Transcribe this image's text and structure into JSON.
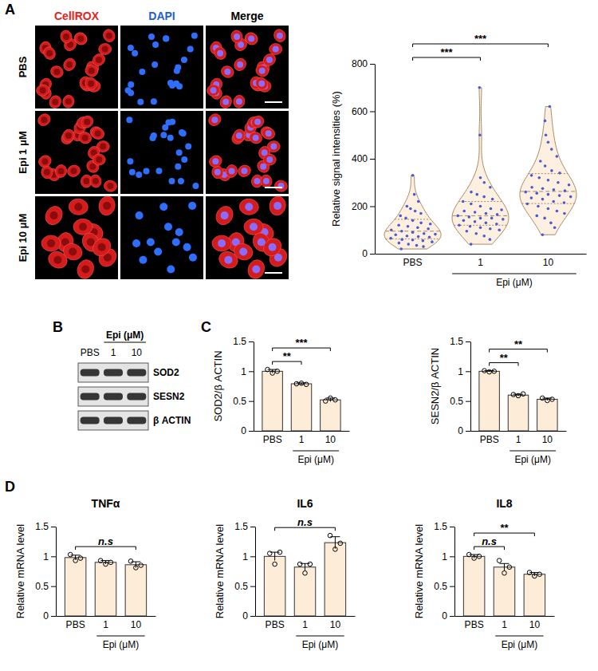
{
  "panel_letters": [
    "A",
    "B",
    "C",
    "D"
  ],
  "images": {
    "columns": [
      "CellROX",
      "DAPI",
      "Merge"
    ],
    "rows": [
      "PBS",
      "Epi 1 μM",
      "Epi 10 μM"
    ]
  },
  "blot": {
    "header": "Epi (μM)",
    "lanes": [
      "PBS",
      "1",
      "10"
    ],
    "bands": [
      "SOD2",
      "SESN2",
      "β ACTIN"
    ]
  },
  "chart_data": [
    {
      "type": "violin",
      "ylabel": "Relative signal intensities (%)",
      "xlabel": "Epi (μM)",
      "categories": [
        "PBS",
        "1",
        "10"
      ],
      "color": "#fdf0e0",
      "ylim": [
        0,
        800
      ],
      "yticks": [
        0,
        200,
        400,
        600,
        800
      ],
      "points": [
        [
          20,
          30,
          35,
          40,
          45,
          50,
          55,
          58,
          60,
          65,
          70,
          72,
          75,
          80,
          82,
          85,
          90,
          95,
          100,
          105,
          110,
          115,
          120,
          125,
          130,
          140,
          150,
          160,
          170,
          180,
          190,
          200,
          220,
          250,
          330
        ],
        [
          40,
          60,
          75,
          85,
          95,
          100,
          105,
          110,
          115,
          120,
          125,
          130,
          135,
          140,
          145,
          150,
          150,
          155,
          160,
          165,
          170,
          175,
          180,
          185,
          190,
          200,
          210,
          220,
          230,
          240,
          250,
          260,
          280,
          300,
          320,
          500,
          700
        ],
        [
          80,
          110,
          130,
          150,
          160,
          170,
          180,
          190,
          200,
          210,
          215,
          220,
          230,
          235,
          240,
          245,
          250,
          255,
          260,
          265,
          270,
          275,
          280,
          290,
          300,
          310,
          320,
          330,
          340,
          350,
          370,
          390,
          410,
          440,
          470,
          500,
          560,
          620
        ]
      ],
      "annotations": [
        {
          "from": "PBS",
          "to": "1",
          "label": "***"
        },
        {
          "from": "PBS",
          "to": "10",
          "label": "***"
        }
      ]
    },
    {
      "type": "bar",
      "ylabel": "SOD2/β ACTIN",
      "xlabel": "Epi (μM)",
      "categories": [
        "PBS",
        "1",
        "10"
      ],
      "values": [
        1.0,
        0.79,
        0.52
      ],
      "errors": [
        0.03,
        0.015,
        0.03
      ],
      "points": [
        [
          1.03,
          0.97,
          1.0
        ],
        [
          0.79,
          0.8,
          0.78
        ],
        [
          0.5,
          0.55,
          0.52
        ]
      ],
      "color": "#fdecd8",
      "ylim": [
        0,
        1.5
      ],
      "yticks": [
        0,
        0.5,
        1,
        1.5
      ],
      "annotations": [
        {
          "from": "PBS",
          "to": "1",
          "label": "**"
        },
        {
          "from": "PBS",
          "to": "10",
          "label": "***"
        }
      ]
    },
    {
      "type": "bar",
      "ylabel": "SESN2/β ACTIN",
      "xlabel": "Epi (μM)",
      "categories": [
        "PBS",
        "1",
        "10"
      ],
      "values": [
        1.0,
        0.6,
        0.53
      ],
      "errors": [
        0.01,
        0.015,
        0.02
      ],
      "points": [
        [
          1.01,
          0.99,
          1.0
        ],
        [
          0.61,
          0.59,
          0.62
        ],
        [
          0.55,
          0.51,
          0.53
        ]
      ],
      "color": "#fdecd8",
      "ylim": [
        0,
        1.5
      ],
      "yticks": [
        0,
        0.5,
        1,
        1.5
      ],
      "annotations": [
        {
          "from": "PBS",
          "to": "1",
          "label": "**"
        },
        {
          "from": "PBS",
          "to": "10",
          "label": "**"
        }
      ]
    },
    {
      "type": "bar",
      "title": "TNFα",
      "ylabel": "Relative mRNA level",
      "xlabel": "Epi (μM)",
      "categories": [
        "PBS",
        "1",
        "10"
      ],
      "values": [
        0.98,
        0.9,
        0.86
      ],
      "errors": [
        0.04,
        0.03,
        0.05
      ],
      "points": [
        [
          1.03,
          0.93,
          0.97
        ],
        [
          0.93,
          0.87,
          0.9
        ],
        [
          0.92,
          0.81,
          0.85
        ]
      ],
      "color": "#fdecd8",
      "ylim": [
        0,
        1.5
      ],
      "yticks": [
        0,
        0.5,
        1,
        1.5
      ],
      "annotations": [
        {
          "from": "PBS",
          "to": "10",
          "label": "n.s"
        }
      ]
    },
    {
      "type": "bar",
      "title": "IL6",
      "ylabel": "Relative mRNA level",
      "xlabel": "Epi (μM)",
      "categories": [
        "PBS",
        "1",
        "10"
      ],
      "values": [
        1.0,
        0.82,
        1.23
      ],
      "errors": [
        0.07,
        0.06,
        0.1
      ],
      "points": [
        [
          1.05,
          0.87,
          1.07
        ],
        [
          0.87,
          0.72,
          0.87
        ],
        [
          1.35,
          1.12,
          1.22
        ]
      ],
      "color": "#fdecd8",
      "ylim": [
        0,
        1.5
      ],
      "yticks": [
        0,
        0.5,
        1,
        1.5
      ],
      "annotations": [
        {
          "from": "PBS",
          "to": "10",
          "label": "n.s"
        }
      ]
    },
    {
      "type": "bar",
      "title": "IL8",
      "ylabel": "Relative mRNA level",
      "xlabel": "Epi (μM)",
      "categories": [
        "PBS",
        "1",
        "10"
      ],
      "values": [
        1.0,
        0.82,
        0.7
      ],
      "errors": [
        0.03,
        0.06,
        0.03
      ],
      "points": [
        [
          1.03,
          0.97,
          1.0
        ],
        [
          0.93,
          0.72,
          0.82
        ],
        [
          0.73,
          0.67,
          0.7
        ]
      ],
      "color": "#fdecd8",
      "ylim": [
        0,
        1.5
      ],
      "yticks": [
        0,
        0.5,
        1,
        1.5
      ],
      "annotations": [
        {
          "from": "PBS",
          "to": "1",
          "label": "n.s"
        },
        {
          "from": "PBS",
          "to": "10",
          "label": "**"
        }
      ]
    }
  ]
}
